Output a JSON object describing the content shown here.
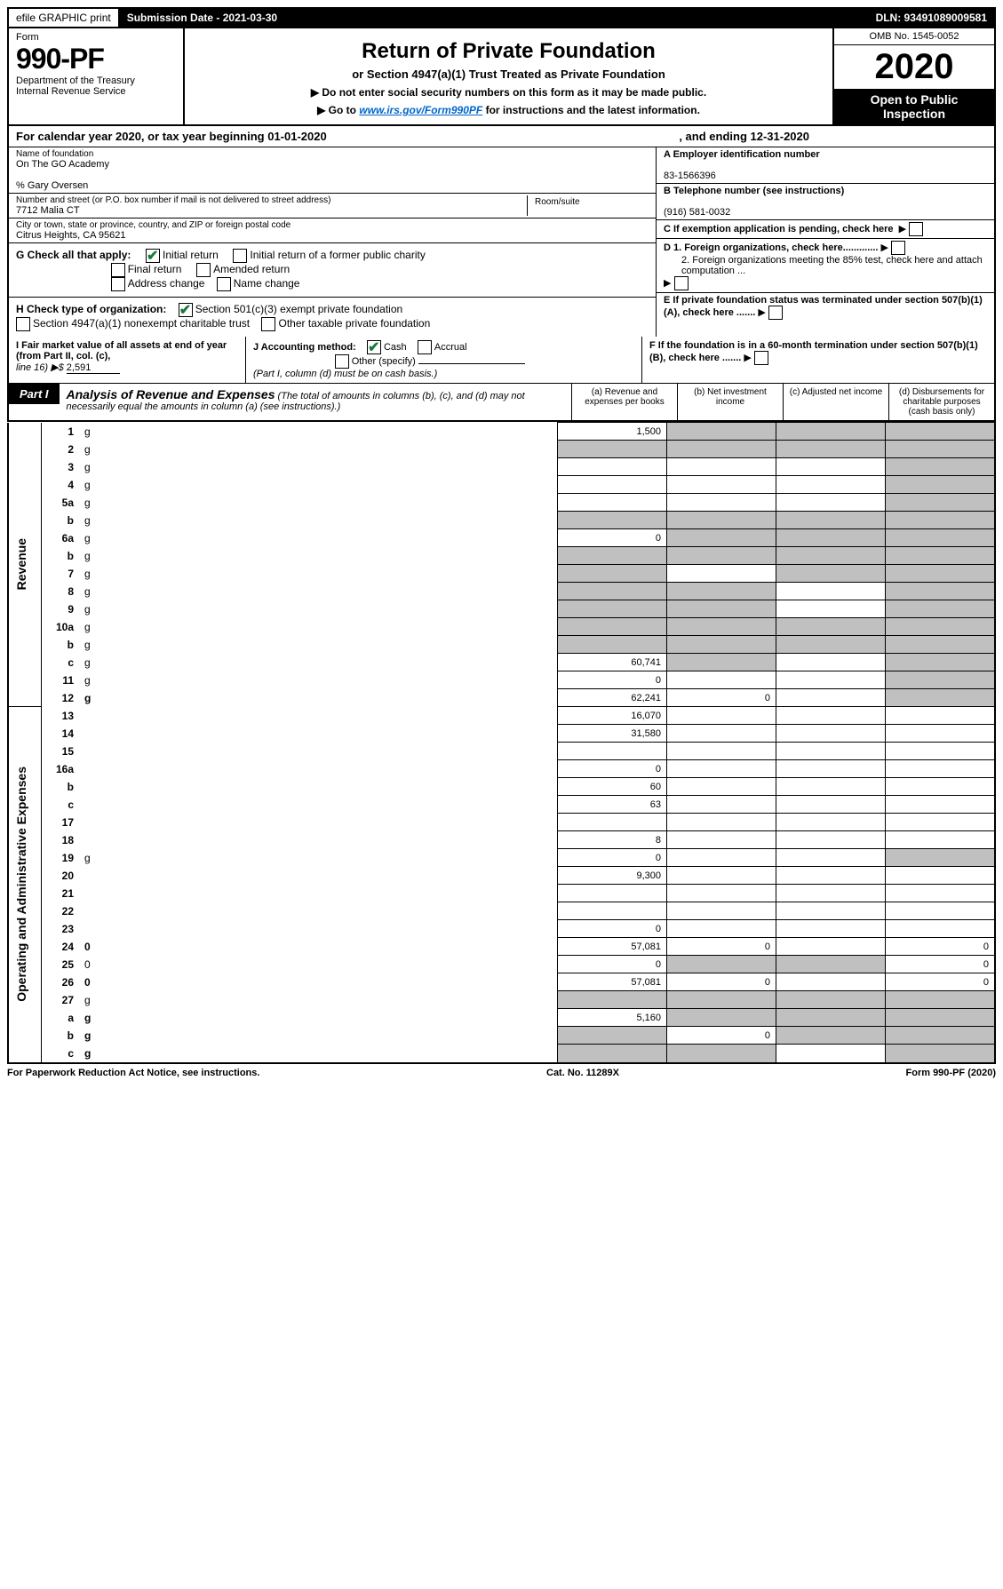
{
  "topbar": {
    "efile": "efile GRAPHIC print",
    "submission_label": "Submission Date - 2021-03-30",
    "dln": "DLN: 93491089009581"
  },
  "header": {
    "form_label": "Form",
    "form_number": "990-PF",
    "dept": "Department of the Treasury",
    "irs": "Internal Revenue Service",
    "title": "Return of Private Foundation",
    "subtitle": "or Section 4947(a)(1) Trust Treated as Private Foundation",
    "instr1": "▶ Do not enter social security numbers on this form as it may be made public.",
    "instr2_pre": "▶ Go to ",
    "instr2_link": "www.irs.gov/Form990PF",
    "instr2_post": " for instructions and the latest information.",
    "omb": "OMB No. 1545-0052",
    "year": "2020",
    "open": "Open to Public Inspection"
  },
  "calyear": {
    "text1": "For calendar year 2020, or tax year beginning 01-01-2020",
    "text2": ", and ending 12-31-2020"
  },
  "foundation": {
    "name_label": "Name of foundation",
    "name": "On The GO Academy",
    "pct": "% Gary Oversen",
    "addr_label": "Number and street (or P.O. box number if mail is not delivered to street address)",
    "addr": "7712 Malia CT",
    "room_label": "Room/suite",
    "city_label": "City or town, state or province, country, and ZIP or foreign postal code",
    "city": "Citrus Heights, CA  95621"
  },
  "right": {
    "a_label": "A Employer identification number",
    "ein": "83-1566396",
    "b_label": "B Telephone number (see instructions)",
    "phone": "(916) 581-0032",
    "c_label": "C If exemption application is pending, check here",
    "d1": "D 1. Foreign organizations, check here.............",
    "d2": "2. Foreign organizations meeting the 85% test, check here and attach computation ...",
    "e_label": "E  If private foundation status was terminated under section 507(b)(1)(A), check here .......",
    "f_label": "F  If the foundation is in a 60-month termination under section 507(b)(1)(B), check here ......."
  },
  "checks": {
    "g_label": "G Check all that apply:",
    "initial": "Initial return",
    "initial_former": "Initial return of a former public charity",
    "final": "Final return",
    "amended": "Amended return",
    "addr_change": "Address change",
    "name_change": "Name change",
    "h_label": "H Check type of organization:",
    "501c3": "Section 501(c)(3) exempt private foundation",
    "4947": "Section 4947(a)(1) nonexempt charitable trust",
    "other_taxable": "Other taxable private foundation"
  },
  "bottom": {
    "i_label": "I Fair market value of all assets at end of year (from Part II, col. (c),",
    "i_line": "line 16) ▶$",
    "i_val": "2,591",
    "j_label": "J Accounting method:",
    "cash": "Cash",
    "accrual": "Accrual",
    "other": "Other (specify)",
    "note": "(Part I, column (d) must be on cash basis.)"
  },
  "part1": {
    "label": "Part I",
    "title": "Analysis of Revenue and Expenses",
    "note": " (The total of amounts in columns (b), (c), and (d) may not necessarily equal the amounts in column (a) (see instructions).)",
    "col_a": "(a) Revenue and expenses per books",
    "col_b": "(b) Net investment income",
    "col_c": "(c) Adjusted net income",
    "col_d": "(d) Disbursements for charitable purposes (cash basis only)"
  },
  "sections": {
    "revenue": "Revenue",
    "expenses": "Operating and Administrative Expenses"
  },
  "rows": [
    {
      "n": "1",
      "d": "g",
      "a": "1,500",
      "b": "g",
      "c": "g"
    },
    {
      "n": "2",
      "d": "g",
      "a": "g",
      "b": "g",
      "c": "g"
    },
    {
      "n": "3",
      "d": "g",
      "a": "",
      "b": "",
      "c": ""
    },
    {
      "n": "4",
      "d": "g",
      "a": "",
      "b": "",
      "c": ""
    },
    {
      "n": "5a",
      "d": "g",
      "a": "",
      "b": "",
      "c": ""
    },
    {
      "n": "b",
      "d": "g",
      "a": "g",
      "b": "g",
      "c": "g"
    },
    {
      "n": "6a",
      "d": "g",
      "a": "0",
      "b": "g",
      "c": "g"
    },
    {
      "n": "b",
      "d": "g",
      "a": "g",
      "b": "g",
      "c": "g"
    },
    {
      "n": "7",
      "d": "g",
      "a": "g",
      "b": "",
      "c": "g"
    },
    {
      "n": "8",
      "d": "g",
      "a": "g",
      "b": "g",
      "c": ""
    },
    {
      "n": "9",
      "d": "g",
      "a": "g",
      "b": "g",
      "c": ""
    },
    {
      "n": "10a",
      "d": "g",
      "a": "g",
      "b": "g",
      "c": "g"
    },
    {
      "n": "b",
      "d": "g",
      "a": "g",
      "b": "g",
      "c": "g"
    },
    {
      "n": "c",
      "d": "g",
      "a": "60,741",
      "b": "g",
      "c": ""
    },
    {
      "n": "11",
      "d": "g",
      "a": "0",
      "b": "",
      "c": ""
    },
    {
      "n": "12",
      "d": "g",
      "a": "62,241",
      "b": "0",
      "c": "",
      "bold": true
    }
  ],
  "exp_rows": [
    {
      "n": "13",
      "d": "",
      "a": "16,070",
      "b": "",
      "c": ""
    },
    {
      "n": "14",
      "d": "",
      "a": "31,580",
      "b": "",
      "c": ""
    },
    {
      "n": "15",
      "d": "",
      "a": "",
      "b": "",
      "c": ""
    },
    {
      "n": "16a",
      "d": "",
      "a": "0",
      "b": "",
      "c": ""
    },
    {
      "n": "b",
      "d": "",
      "a": "60",
      "b": "",
      "c": ""
    },
    {
      "n": "c",
      "d": "",
      "a": "63",
      "b": "",
      "c": ""
    },
    {
      "n": "17",
      "d": "",
      "a": "",
      "b": "",
      "c": ""
    },
    {
      "n": "18",
      "d": "",
      "a": "8",
      "b": "",
      "c": ""
    },
    {
      "n": "19",
      "d": "g",
      "a": "0",
      "b": "",
      "c": ""
    },
    {
      "n": "20",
      "d": "",
      "a": "9,300",
      "b": "",
      "c": ""
    },
    {
      "n": "21",
      "d": "",
      "a": "",
      "b": "",
      "c": ""
    },
    {
      "n": "22",
      "d": "",
      "a": "",
      "b": "",
      "c": ""
    },
    {
      "n": "23",
      "d": "",
      "a": "0",
      "b": "",
      "c": ""
    },
    {
      "n": "24",
      "d": "0",
      "a": "57,081",
      "b": "0",
      "c": "",
      "bold": true
    },
    {
      "n": "25",
      "d": "0",
      "a": "0",
      "b": "g",
      "c": "g"
    },
    {
      "n": "26",
      "d": "0",
      "a": "57,081",
      "b": "0",
      "c": "",
      "bold": true
    },
    {
      "n": "27",
      "d": "g",
      "a": "g",
      "b": "g",
      "c": "g"
    },
    {
      "n": "a",
      "d": "g",
      "a": "5,160",
      "b": "g",
      "c": "g",
      "bold": true
    },
    {
      "n": "b",
      "d": "g",
      "a": "g",
      "b": "0",
      "c": "g",
      "bold": true
    },
    {
      "n": "c",
      "d": "g",
      "a": "g",
      "b": "g",
      "c": "",
      "bold": true
    }
  ],
  "footer": {
    "left": "For Paperwork Reduction Act Notice, see instructions.",
    "center": "Cat. No. 11289X",
    "right": "Form 990-PF (2020)"
  }
}
